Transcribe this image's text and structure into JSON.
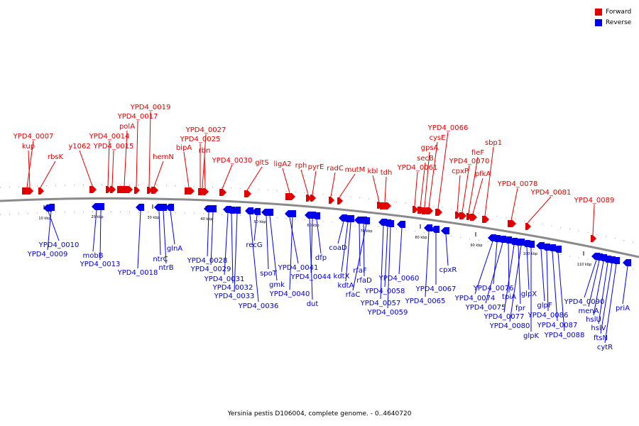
{
  "legend": {
    "forward_label": "Forward",
    "reverse_label": "Reverse",
    "forward_color": "#e00000",
    "reverse_color": "#0000e8"
  },
  "caption": "Yersinia pestis D106004, complete genome. - 0..4640720",
  "ticks": [
    "10 kbp",
    "20 kbp",
    "30 kbp",
    "40 kbp",
    "50 kbp",
    "60 kbp",
    "70 kbp",
    "80 kbp",
    "90 kbp",
    "100 kbp",
    "110 kbp"
  ],
  "forward_genes": [
    {
      "label": "YPD4_0007"
    },
    {
      "label": "kup"
    },
    {
      "label": "rbsK"
    },
    {
      "label": "y1062"
    },
    {
      "label": "YPD4_0014"
    },
    {
      "label": "YPD4_0015"
    },
    {
      "label": "polA"
    },
    {
      "label": "YPD4_0017"
    },
    {
      "label": "YPD4_0019"
    },
    {
      "label": "hemN"
    },
    {
      "label": "bipA"
    },
    {
      "label": "YPD4_0025"
    },
    {
      "label": "YPD4_0027"
    },
    {
      "label": "rbn"
    },
    {
      "label": "YPD4_0030"
    },
    {
      "label": "gltS"
    },
    {
      "label": "ligA2"
    },
    {
      "label": "rph"
    },
    {
      "label": "pyrE"
    },
    {
      "label": "radC"
    },
    {
      "label": "mutM"
    },
    {
      "label": "kbl"
    },
    {
      "label": "tdh"
    },
    {
      "label": "YPD4_0061"
    },
    {
      "label": "secB"
    },
    {
      "label": "gpsA"
    },
    {
      "label": "cysE"
    },
    {
      "label": "YPD4_0066"
    },
    {
      "label": "cpxP"
    },
    {
      "label": "YPD4_0070"
    },
    {
      "label": "fieF"
    },
    {
      "label": "pfkA"
    },
    {
      "label": "sbp1"
    },
    {
      "label": "YPD4_0078"
    },
    {
      "label": "YPD4_0081"
    },
    {
      "label": "YPD4_0089"
    }
  ],
  "reverse_genes": [
    {
      "label": "YPD4_0010"
    },
    {
      "label": "YPD4_0009"
    },
    {
      "label": "mobB"
    },
    {
      "label": "YPD4_0013"
    },
    {
      "label": "YPD4_0018"
    },
    {
      "label": "ntrC"
    },
    {
      "label": "ntrB"
    },
    {
      "label": "glnA"
    },
    {
      "label": "YPD4_0028"
    },
    {
      "label": "YPD4_0029"
    },
    {
      "label": "YPD4_0031"
    },
    {
      "label": "YPD4_0032"
    },
    {
      "label": "YPD4_0033"
    },
    {
      "label": "YPD4_0036"
    },
    {
      "label": "recG"
    },
    {
      "label": "spoT"
    },
    {
      "label": "gmk"
    },
    {
      "label": "YPD4_0041"
    },
    {
      "label": "YPD4_0040"
    },
    {
      "label": "YPD4_0044"
    },
    {
      "label": "dfp"
    },
    {
      "label": "dut"
    },
    {
      "label": "coaD"
    },
    {
      "label": "kdtX"
    },
    {
      "label": "kdtA"
    },
    {
      "label": "rfaF"
    },
    {
      "label": "rfaD"
    },
    {
      "label": "rfaC"
    },
    {
      "label": "YPD4_0057"
    },
    {
      "label": "YPD4_0058"
    },
    {
      "label": "YPD4_0059"
    },
    {
      "label": "YPD4_0060"
    },
    {
      "label": "YPD4_0065"
    },
    {
      "label": "YPD4_0067"
    },
    {
      "label": "cpxR"
    },
    {
      "label": "YPD4_0076"
    },
    {
      "label": "YPD4_0074"
    },
    {
      "label": "tpiA"
    },
    {
      "label": "YPD4_0075"
    },
    {
      "label": "fpr"
    },
    {
      "label": "YPD4_0077"
    },
    {
      "label": "YPD4_0080"
    },
    {
      "label": "glpX"
    },
    {
      "label": "glpK"
    },
    {
      "label": "glpF"
    },
    {
      "label": "YPD4_0086"
    },
    {
      "label": "YPD4_0087"
    },
    {
      "label": "YPD4_0088"
    },
    {
      "label": "YPD4_0090"
    },
    {
      "label": "menA"
    },
    {
      "label": "hslU"
    },
    {
      "label": "hslV"
    },
    {
      "label": "ftsN"
    },
    {
      "label": "cytR"
    },
    {
      "label": "priA"
    }
  ]
}
